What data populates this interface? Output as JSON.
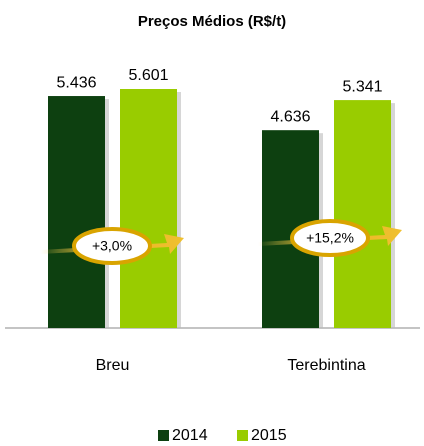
{
  "chart_data": {
    "type": "bar",
    "title": "Preços Médios (R$/t)",
    "categories": [
      "Breu",
      "Terebintina"
    ],
    "series": [
      {
        "name": "2014",
        "color": "#0d4010",
        "values": [
          5436,
          4636
        ],
        "value_labels": [
          "5.436",
          "4.636"
        ]
      },
      {
        "name": "2015",
        "color": "#99cc00",
        "values": [
          5601,
          5341
        ],
        "value_labels": [
          "5.601",
          "5.341"
        ]
      }
    ],
    "annotations": [
      "+3,0%",
      "+15,2%"
    ],
    "legend": "bottom"
  }
}
